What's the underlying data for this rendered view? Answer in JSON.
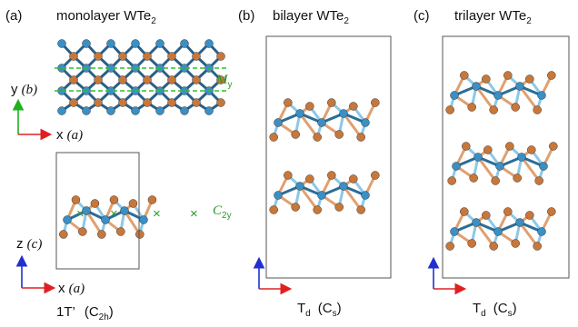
{
  "panels": [
    {
      "label": "(a)",
      "title": {
        "text": "monolayer WTe",
        "sub": "2"
      },
      "top_axes": {
        "y": {
          "axis": "y",
          "param": "(b)"
        },
        "x": {
          "axis": "x",
          "param": "(a)"
        }
      },
      "mirror": {
        "text": "M",
        "sub": "y"
      },
      "rotation": {
        "text": "C",
        "sub": "2y"
      },
      "side_axes": {
        "z": {
          "axis": "z",
          "param": "(c)"
        },
        "x": {
          "axis": "x",
          "param": "(a)"
        }
      },
      "phase": {
        "name": "1T’",
        "group": "(C",
        "group_sub": "2h",
        "group_end": ")"
      }
    },
    {
      "label": "(b)",
      "title": {
        "text": "bilayer WTe",
        "sub": "2"
      },
      "phase": {
        "name": "T",
        "name_sub": "d",
        "group": "(C",
        "group_sub": "s",
        "group_end": ")"
      }
    },
    {
      "label": "(c)",
      "title": {
        "text": "trilayer WTe",
        "sub": "2"
      },
      "phase": {
        "name": "T",
        "name_sub": "d",
        "group": "(C",
        "group_sub": "s",
        "group_end": ")"
      }
    }
  ]
}
